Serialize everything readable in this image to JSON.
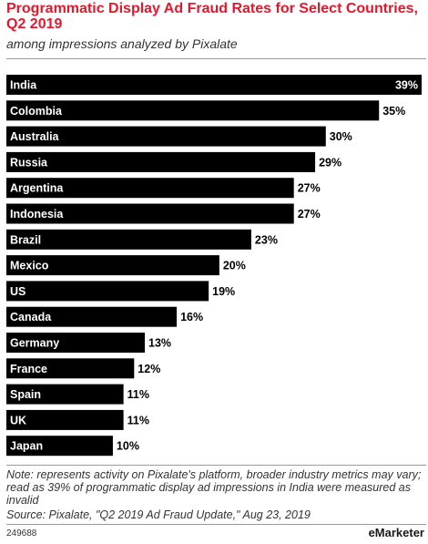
{
  "header": {
    "title": "Programmatic Display Ad Fraud Rates for Select Countries, Q2 2019",
    "subtitle": "among impressions analyzed by Pixalate"
  },
  "chart_data": {
    "type": "bar",
    "orientation": "horizontal",
    "categories": [
      "India",
      "Colombia",
      "Australia",
      "Russia",
      "Argentina",
      "Indonesia",
      "Brazil",
      "Mexico",
      "US",
      "Canada",
      "Germany",
      "France",
      "Spain",
      "UK",
      "Japan"
    ],
    "values": [
      39,
      35,
      30,
      29,
      27,
      27,
      23,
      20,
      19,
      16,
      13,
      12,
      11,
      11,
      10
    ],
    "value_labels": [
      "39%",
      "35%",
      "30%",
      "29%",
      "27%",
      "27%",
      "23%",
      "20%",
      "19%",
      "16%",
      "13%",
      "12%",
      "11%",
      "11%",
      "10%"
    ],
    "xlim": [
      0,
      39
    ],
    "grid": false,
    "bar_color": "#000000"
  },
  "footer": {
    "note": "Note: represents activity on Pixalate's platform, broader industry metrics may vary; read as 39% of programmatic display ad impressions in India were measured as invalid",
    "source": "Source: Pixalate, \"Q2 2019 Ad Fraud Update,\" Aug 23, 2019",
    "chart_id": "249688",
    "brand_prefix": "e",
    "brand_name": "Marketer"
  }
}
